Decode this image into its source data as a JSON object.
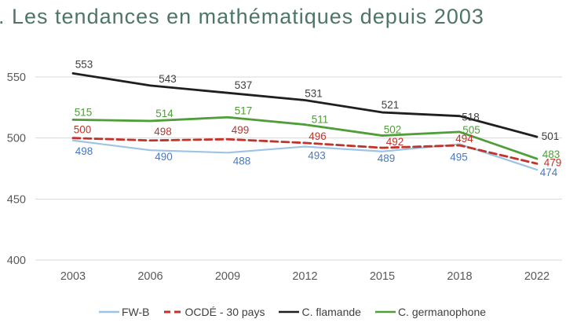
{
  "page": {
    "title": ". Les tendances en mathématiques depuis 2003"
  },
  "colors": {
    "grid": "#d9d9d9",
    "axis_label": "#595959",
    "title": "#4e7568",
    "fwb_line": "#9dc3e6",
    "fwb_label": "#4a78c2",
    "ocde": "#c0342b",
    "flamande_line": "#1f1f1f",
    "flamande_label": "#404040",
    "germanophone": "#4f9e3a"
  },
  "chart_data": {
    "type": "line",
    "title": "Les tendances en mathématiques depuis 2003",
    "xlabel": "",
    "ylabel": "",
    "grid": true,
    "legend_position": "bottom",
    "x_labels": [
      "2003",
      "2006",
      "2009",
      "2012",
      "2015",
      "2018",
      "2022"
    ],
    "y_ticks": [
      550,
      500,
      450,
      400
    ],
    "ylim": [
      400,
      560
    ],
    "series": [
      {
        "name": "FW-B",
        "color": "#9dc3e6",
        "label_color": "#4a78c2",
        "dash": false,
        "values": [
          498,
          490,
          488,
          493,
          489,
          495,
          474
        ]
      },
      {
        "name": "OCDÉ - 30 pays",
        "color": "#c0342b",
        "label_color": "#c0342b",
        "dash": true,
        "values": [
          500,
          498,
          499,
          496,
          492,
          494,
          479
        ]
      },
      {
        "name": "C. flamande",
        "color": "#1f1f1f",
        "label_color": "#404040",
        "dash": false,
        "values": [
          553,
          543,
          537,
          531,
          521,
          518,
          501
        ]
      },
      {
        "name": "C. germanophone",
        "color": "#4f9e3a",
        "label_color": "#4f9e3a",
        "dash": false,
        "values": [
          515,
          514,
          517,
          511,
          502,
          505,
          483
        ]
      }
    ]
  }
}
